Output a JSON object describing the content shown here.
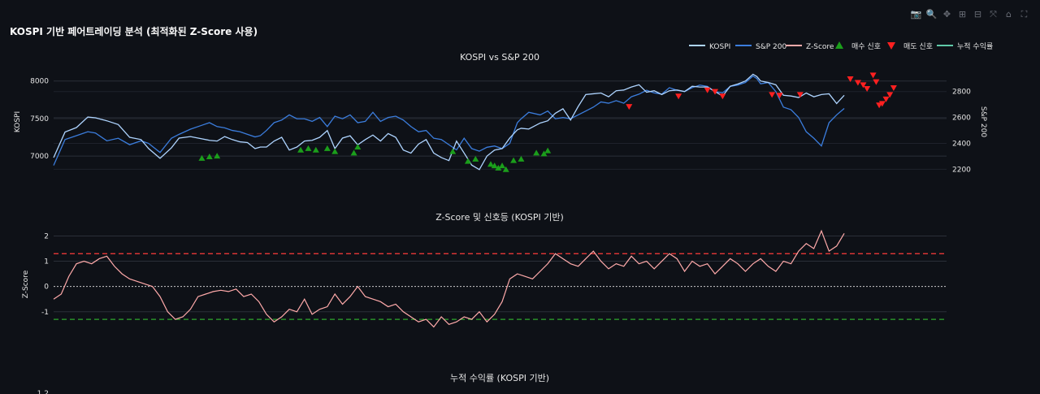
{
  "page": {
    "title": "KOSPI 기반 페어트레이딩 분석 (최적화된 Z-Score 사용)"
  },
  "modebar": {
    "icons": [
      {
        "name": "camera-icon",
        "glyph": "📷"
      },
      {
        "name": "zoom-icon",
        "glyph": "🔍"
      },
      {
        "name": "pan-icon",
        "glyph": "✥"
      },
      {
        "name": "zoom-in-icon",
        "glyph": "⊞"
      },
      {
        "name": "zoom-out-icon",
        "glyph": "⊟"
      },
      {
        "name": "autoscale-icon",
        "glyph": "⤧"
      },
      {
        "name": "home-icon",
        "glyph": "⌂"
      },
      {
        "name": "fullscreen-icon",
        "glyph": "⛶"
      }
    ]
  },
  "legend": {
    "items": [
      {
        "label": "KOSPI",
        "kind": "line",
        "color": "#aed4ff"
      },
      {
        "label": "S&P 200",
        "kind": "line",
        "color": "#3b7ddd"
      },
      {
        "label": "Z-Score",
        "kind": "line",
        "color": "#ffaaaa"
      },
      {
        "label": "매수 신호",
        "kind": "up",
        "color": "#1b9e1b"
      },
      {
        "label": "매도 신호",
        "kind": "down",
        "color": "#ff2020"
      },
      {
        "label": "누적 수익률",
        "kind": "line",
        "color": "#5fc9a8"
      }
    ]
  },
  "colors": {
    "kospi": "#aed4ff",
    "sp": "#3b7ddd",
    "zscore": "#ffaaaa",
    "buy": "#1b9e1b",
    "sell": "#ff2020",
    "grid": "#2a2f38",
    "text": "#e6e6e6"
  },
  "chart_data": [
    {
      "type": "line",
      "title": "KOSPI vs S&P 200",
      "ylabel": "KOSPI",
      "y2label": "S&P 200",
      "ylim": [
        6720,
        8170
      ],
      "y2lim": [
        2140,
        2980
      ],
      "yticks": [
        7000,
        7500,
        8000
      ],
      "y2ticks": [
        2200,
        2400,
        2600,
        2800
      ],
      "x": [
        0,
        15,
        30,
        45,
        55,
        70,
        85,
        100,
        115,
        125,
        140,
        155,
        165,
        180,
        195,
        205,
        215,
        225,
        235,
        245,
        255,
        265,
        272,
        280,
        290,
        300,
        310,
        320,
        330,
        340,
        350,
        360,
        370,
        380,
        390,
        400,
        410,
        420,
        430,
        440,
        450,
        460,
        470,
        480,
        490,
        500,
        510,
        520,
        530,
        540,
        550,
        560,
        570,
        580,
        590,
        600,
        610,
        615,
        625,
        640,
        650,
        660,
        670,
        680,
        690,
        700,
        710,
        720,
        730,
        740,
        750,
        760,
        770,
        780,
        790,
        800,
        810,
        820,
        830,
        840,
        850,
        860,
        870,
        880,
        890,
        900,
        910,
        920,
        925,
        930,
        940,
        950,
        960,
        970,
        980,
        990,
        1000,
        1010,
        1020,
        1030,
        1040
      ],
      "series": [
        {
          "name": "KOSPI",
          "values": [
            6980,
            7320,
            7380,
            7520,
            7510,
            7470,
            7420,
            7250,
            7220,
            7100,
            6970,
            7110,
            7240,
            7260,
            7230,
            7210,
            7200,
            7260,
            7220,
            7190,
            7180,
            7100,
            7120,
            7120,
            7200,
            7250,
            7080,
            7120,
            7200,
            7210,
            7250,
            7340,
            7100,
            7240,
            7270,
            7150,
            7220,
            7280,
            7200,
            7300,
            7250,
            7080,
            7040,
            7160,
            7220,
            7040,
            6980,
            6940,
            7200,
            7040,
            6880,
            6820,
            7000,
            7080,
            7100,
            7240,
            7350,
            7370,
            7360,
            7440,
            7470,
            7570,
            7630,
            7480,
            7660,
            7820,
            7830,
            7840,
            7790,
            7870,
            7880,
            7920,
            7950,
            7850,
            7870,
            7820,
            7870,
            7880,
            7860,
            7930,
            7920,
            7920,
            7860,
            7800,
            7930,
            7960,
            8000,
            8090,
            8060,
            8000,
            7980,
            7950,
            7810,
            7800,
            7780,
            7840,
            7790,
            7820,
            7830,
            7700,
            7810
          ]
        },
        {
          "name": "S&P 200",
          "values": [
            2230,
            2430,
            2460,
            2490,
            2480,
            2420,
            2440,
            2390,
            2420,
            2400,
            2330,
            2440,
            2470,
            2510,
            2540,
            2560,
            2530,
            2520,
            2500,
            2490,
            2470,
            2450,
            2460,
            2500,
            2560,
            2580,
            2620,
            2590,
            2590,
            2570,
            2600,
            2530,
            2610,
            2590,
            2620,
            2560,
            2570,
            2640,
            2570,
            2600,
            2610,
            2580,
            2530,
            2490,
            2500,
            2440,
            2430,
            2390,
            2350,
            2440,
            2360,
            2340,
            2370,
            2380,
            2360,
            2400,
            2560,
            2590,
            2640,
            2620,
            2650,
            2590,
            2600,
            2590,
            2620,
            2650,
            2680,
            2720,
            2710,
            2730,
            2710,
            2760,
            2780,
            2810,
            2790,
            2780,
            2830,
            2810,
            2800,
            2830,
            2850,
            2840,
            2800,
            2790,
            2840,
            2850,
            2870,
            2920,
            2900,
            2860,
            2870,
            2800,
            2680,
            2660,
            2600,
            2490,
            2440,
            2380,
            2560,
            2620,
            2670
          ]
        }
      ],
      "buy_signals": [
        {
          "x": 195,
          "y": 6970
        },
        {
          "x": 205,
          "y": 6990
        },
        {
          "x": 215,
          "y": 7000
        },
        {
          "x": 325,
          "y": 7080
        },
        {
          "x": 335,
          "y": 7100
        },
        {
          "x": 345,
          "y": 7080
        },
        {
          "x": 360,
          "y": 7100
        },
        {
          "x": 370,
          "y": 7060
        },
        {
          "x": 395,
          "y": 7040
        },
        {
          "x": 400,
          "y": 7120
        },
        {
          "x": 525,
          "y": 7060
        },
        {
          "x": 545,
          "y": 6930
        },
        {
          "x": 555,
          "y": 6960
        },
        {
          "x": 575,
          "y": 6890
        },
        {
          "x": 580,
          "y": 6870
        },
        {
          "x": 585,
          "y": 6840
        },
        {
          "x": 590,
          "y": 6870
        },
        {
          "x": 595,
          "y": 6820
        },
        {
          "x": 605,
          "y": 6940
        },
        {
          "x": 615,
          "y": 6960
        },
        {
          "x": 635,
          "y": 7040
        },
        {
          "x": 645,
          "y": 7030
        },
        {
          "x": 650,
          "y": 7070
        }
      ],
      "sell_signals": [
        {
          "x": 757,
          "y": 7660
        },
        {
          "x": 822,
          "y": 7800
        },
        {
          "x": 860,
          "y": 7880
        },
        {
          "x": 870,
          "y": 7860
        },
        {
          "x": 880,
          "y": 7800
        },
        {
          "x": 945,
          "y": 7820
        },
        {
          "x": 955,
          "y": 7810
        },
        {
          "x": 982,
          "y": 7820
        },
        {
          "x": 1048,
          "y": 8030
        },
        {
          "x": 1058,
          "y": 7980
        },
        {
          "x": 1065,
          "y": 7950
        },
        {
          "x": 1070,
          "y": 7900
        },
        {
          "x": 1078,
          "y": 8080
        },
        {
          "x": 1082,
          "y": 7990
        },
        {
          "x": 1086,
          "y": 7680
        },
        {
          "x": 1090,
          "y": 7700
        },
        {
          "x": 1095,
          "y": 7760
        },
        {
          "x": 1100,
          "y": 7820
        },
        {
          "x": 1105,
          "y": 7910
        }
      ]
    },
    {
      "type": "line",
      "title": "Z-Score 및 신호등 (KOSPI 기반)",
      "ylabel": "Z-Score",
      "ylim": [
        -2.1,
        2.4
      ],
      "yticks": [
        -1,
        0,
        1,
        2
      ],
      "upper_threshold": 1.3,
      "lower_threshold": -1.3,
      "x": [
        0,
        10,
        20,
        30,
        40,
        50,
        60,
        70,
        80,
        90,
        100,
        110,
        120,
        130,
        140,
        150,
        160,
        170,
        180,
        190,
        200,
        210,
        220,
        230,
        240,
        250,
        260,
        270,
        280,
        290,
        300,
        310,
        320,
        330,
        340,
        350,
        360,
        370,
        380,
        390,
        400,
        410,
        420,
        430,
        440,
        450,
        460,
        470,
        480,
        490,
        500,
        510,
        520,
        530,
        540,
        550,
        560,
        570,
        580,
        590,
        600,
        610,
        620,
        630,
        640,
        650,
        660,
        670,
        680,
        690,
        700,
        710,
        720,
        730,
        740,
        750,
        760,
        770,
        780,
        790,
        800,
        810,
        820,
        830,
        840,
        850,
        860,
        870,
        880,
        890,
        900,
        910,
        920,
        930,
        940,
        950,
        960,
        970,
        980,
        990,
        1000,
        1010,
        1020,
        1030,
        1040
      ],
      "series": [
        {
          "name": "Z-Score",
          "values": [
            -0.5,
            -0.3,
            0.4,
            0.9,
            1.0,
            0.9,
            1.1,
            1.2,
            0.8,
            0.5,
            0.3,
            0.2,
            0.1,
            0.0,
            -0.4,
            -1.0,
            -1.3,
            -1.2,
            -0.9,
            -0.4,
            -0.3,
            -0.2,
            -0.15,
            -0.2,
            -0.1,
            -0.4,
            -0.3,
            -0.6,
            -1.1,
            -1.4,
            -1.2,
            -0.9,
            -1.0,
            -0.5,
            -1.1,
            -0.9,
            -0.8,
            -0.3,
            -0.7,
            -0.4,
            0.0,
            -0.4,
            -0.5,
            -0.6,
            -0.8,
            -0.7,
            -1.0,
            -1.2,
            -1.4,
            -1.3,
            -1.6,
            -1.2,
            -1.5,
            -1.4,
            -1.2,
            -1.3,
            -1.0,
            -1.4,
            -1.1,
            -0.6,
            0.3,
            0.5,
            0.4,
            0.3,
            0.6,
            0.9,
            1.3,
            1.1,
            0.9,
            0.8,
            1.1,
            1.4,
            1.0,
            0.7,
            0.9,
            0.8,
            1.2,
            0.9,
            1.0,
            0.7,
            1.0,
            1.3,
            1.1,
            0.6,
            1.0,
            0.8,
            0.9,
            0.5,
            0.8,
            1.1,
            0.9,
            0.6,
            0.9,
            1.1,
            0.8,
            0.6,
            1.0,
            0.9,
            1.4,
            1.7,
            1.5,
            2.2,
            1.4,
            1.6,
            2.1
          ]
        }
      ]
    },
    {
      "type": "line",
      "title": "누적 수익률 (KOSPI 기반)",
      "yticks": [
        1.2
      ]
    }
  ]
}
